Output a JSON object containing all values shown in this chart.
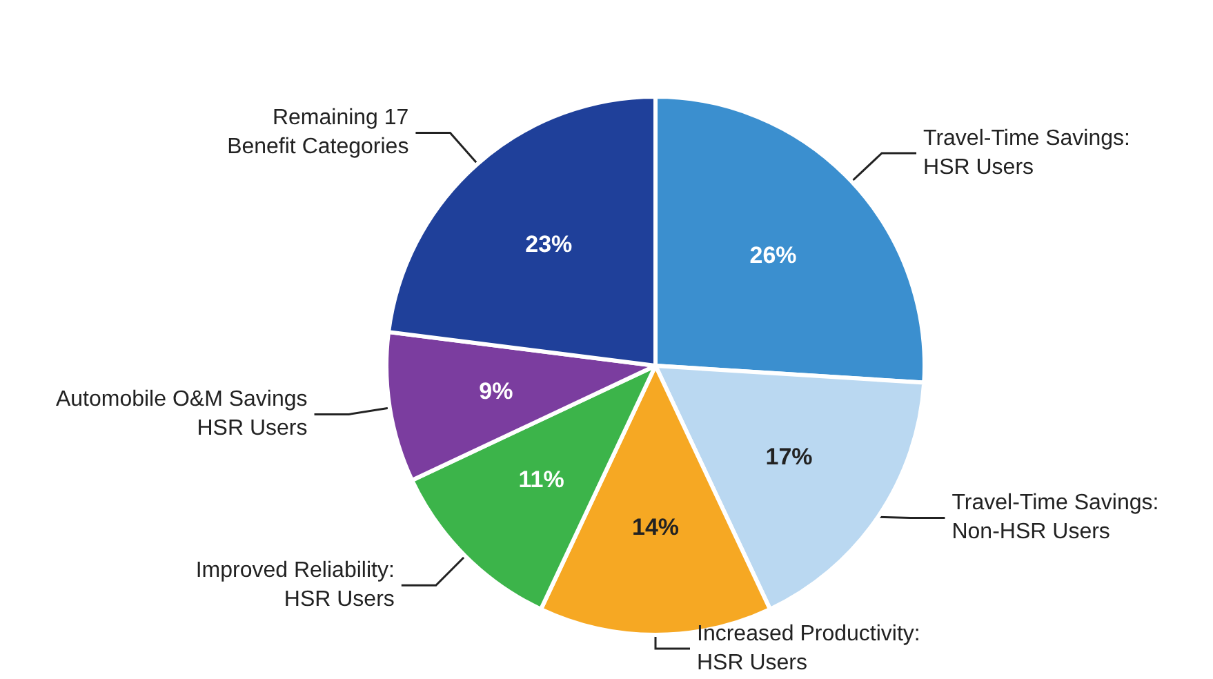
{
  "chart_data": {
    "type": "pie",
    "categories": [
      "Travel-Time Savings:\nHSR Users",
      "Travel-Time Savings:\nNon-HSR Users",
      "Increased Productivity:\nHSR Users",
      "Improved Reliability:\nHSR Users",
      "Automobile O&M Savings\nHSR Users",
      "Remaining 17\nBenefit Categories"
    ],
    "values": [
      26,
      17,
      14,
      11,
      9,
      23
    ],
    "value_labels": [
      "26%",
      "17%",
      "14%",
      "11%",
      "9%",
      "23%"
    ],
    "colors": [
      "#3b8fcf",
      "#bad8f1",
      "#f6a823",
      "#3cb44a",
      "#7b3d9f",
      "#1f409a"
    ],
    "legend": false
  }
}
